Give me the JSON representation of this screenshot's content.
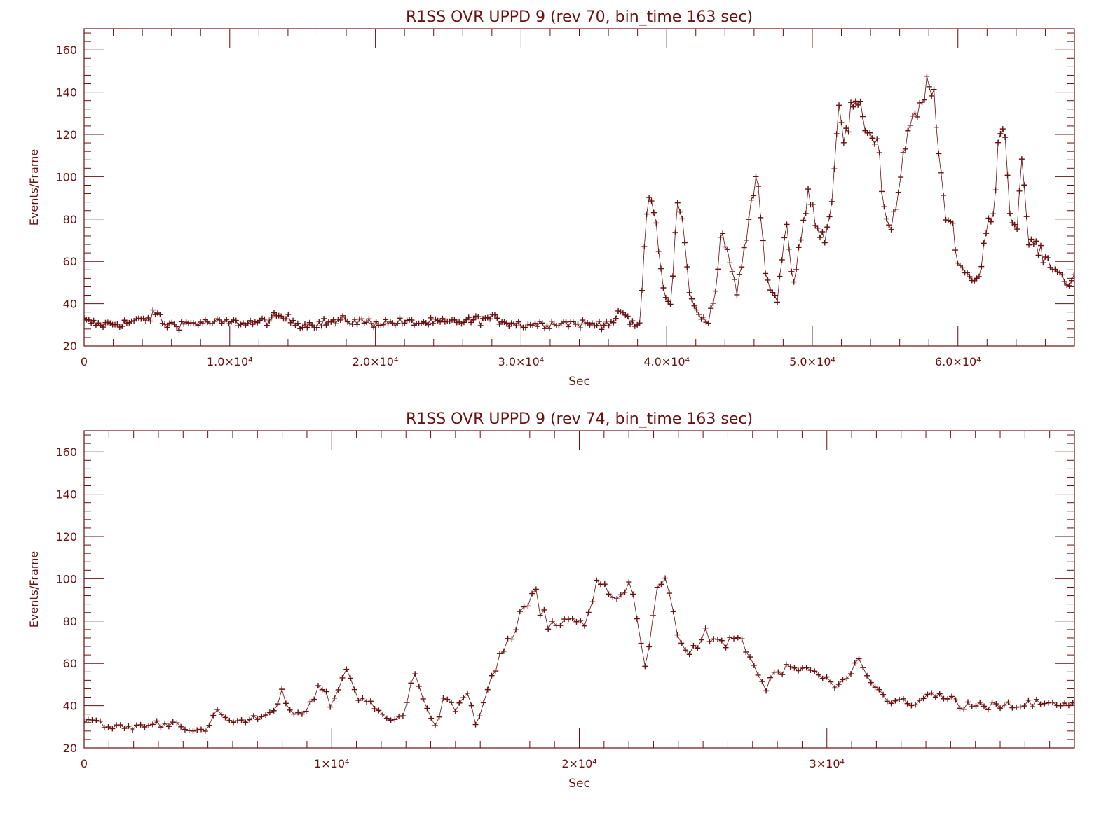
{
  "style": {
    "color": "#6b0f0f",
    "background": "#ffffff",
    "marker": "plus"
  },
  "chart_data": [
    {
      "type": "scatter",
      "title": "R1SS OVR UPPD 9 (rev 70, bin_time 163 sec)",
      "xlabel": "Sec",
      "ylabel": "Events/Frame",
      "xlim": [
        0,
        68000
      ],
      "ylim": [
        20,
        170
      ],
      "xticks": [
        0,
        10000,
        20000,
        30000,
        40000,
        50000,
        60000
      ],
      "xtick_labels": [
        "0",
        "1.0×10⁴",
        "2.0×10⁴",
        "3.0×10⁴",
        "4.0×10⁴",
        "5.0×10⁴",
        "6.0×10⁴"
      ],
      "yticks": [
        20,
        40,
        60,
        80,
        100,
        120,
        140,
        160
      ],
      "ytick_labels": [
        "20",
        "40",
        "60",
        "80",
        "100",
        "120",
        "140",
        "160"
      ],
      "bin_time": 163,
      "profile": [
        [
          0,
          32
        ],
        [
          1000,
          30
        ],
        [
          3000,
          31
        ],
        [
          4500,
          33
        ],
        [
          5000,
          36
        ],
        [
          5500,
          30
        ],
        [
          8000,
          31
        ],
        [
          10000,
          31
        ],
        [
          12000,
          31
        ],
        [
          13500,
          34
        ],
        [
          15000,
          30
        ],
        [
          18000,
          32
        ],
        [
          20000,
          31
        ],
        [
          25000,
          31
        ],
        [
          28000,
          33
        ],
        [
          30000,
          30
        ],
        [
          33000,
          31
        ],
        [
          35000,
          30
        ],
        [
          36500,
          32
        ],
        [
          37000,
          37
        ],
        [
          37500,
          30
        ],
        [
          38200,
          30
        ],
        [
          38400,
          60
        ],
        [
          38700,
          92
        ],
        [
          39200,
          82
        ],
        [
          39800,
          45
        ],
        [
          40300,
          38
        ],
        [
          40700,
          88
        ],
        [
          41200,
          75
        ],
        [
          41600,
          42
        ],
        [
          42200,
          35
        ],
        [
          42800,
          32
        ],
        [
          43300,
          42
        ],
        [
          43700,
          72
        ],
        [
          44300,
          62
        ],
        [
          44800,
          45
        ],
        [
          45500,
          72
        ],
        [
          46200,
          104
        ],
        [
          46700,
          60
        ],
        [
          47200,
          45
        ],
        [
          47600,
          42
        ],
        [
          48200,
          80
        ],
        [
          48700,
          48
        ],
        [
          49100,
          65
        ],
        [
          49700,
          92
        ],
        [
          50200,
          80
        ],
        [
          50800,
          70
        ],
        [
          51400,
          90
        ],
        [
          51800,
          140
        ],
        [
          52200,
          115
        ],
        [
          52800,
          135
        ],
        [
          53400,
          128
        ],
        [
          54000,
          120
        ],
        [
          54500,
          118
        ],
        [
          54900,
          85
        ],
        [
          55400,
          75
        ],
        [
          56000,
          95
        ],
        [
          56500,
          120
        ],
        [
          57100,
          128
        ],
        [
          57600,
          135
        ],
        [
          58000,
          148
        ],
        [
          58300,
          140
        ],
        [
          58700,
          110
        ],
        [
          59100,
          80
        ],
        [
          59600,
          78
        ],
        [
          60000,
          60
        ],
        [
          60500,
          55
        ],
        [
          61000,
          52
        ],
        [
          61400,
          50
        ],
        [
          61900,
          75
        ],
        [
          62400,
          80
        ],
        [
          62800,
          120
        ],
        [
          63200,
          125
        ],
        [
          63600,
          80
        ],
        [
          64000,
          75
        ],
        [
          64400,
          108
        ],
        [
          64800,
          70
        ],
        [
          65300,
          68
        ],
        [
          65800,
          62
        ],
        [
          66500,
          58
        ],
        [
          67200,
          52
        ],
        [
          67800,
          50
        ],
        [
          68300,
          63
        ],
        [
          68800,
          45
        ],
        [
          69500,
          45
        ]
      ]
    },
    {
      "type": "scatter",
      "title": "R1SS OVR UPPD 9 (rev 74, bin_time 163 sec)",
      "xlabel": "Sec",
      "ylabel": "Events/Frame",
      "xlim": [
        0,
        40000
      ],
      "ylim": [
        20,
        170
      ],
      "xticks": [
        0,
        10000,
        20000,
        30000
      ],
      "xtick_labels": [
        "0",
        "1×10⁴",
        "2×10⁴",
        "3×10⁴"
      ],
      "yticks": [
        20,
        40,
        60,
        80,
        100,
        120,
        140,
        160
      ],
      "ytick_labels": [
        "20",
        "40",
        "60",
        "80",
        "100",
        "120",
        "140",
        "160"
      ],
      "bin_time": 163,
      "profile": [
        [
          0,
          34
        ],
        [
          800,
          30
        ],
        [
          2000,
          30
        ],
        [
          3500,
          32
        ],
        [
          4500,
          29
        ],
        [
          5000,
          27
        ],
        [
          5400,
          40
        ],
        [
          5700,
          32
        ],
        [
          6500,
          33
        ],
        [
          7500,
          35
        ],
        [
          8000,
          45
        ],
        [
          8500,
          36
        ],
        [
          9000,
          38
        ],
        [
          9500,
          50
        ],
        [
          10000,
          40
        ],
        [
          10600,
          58
        ],
        [
          11000,
          45
        ],
        [
          11500,
          42
        ],
        [
          12000,
          35
        ],
        [
          12500,
          32
        ],
        [
          13000,
          38
        ],
        [
          13300,
          60
        ],
        [
          13700,
          44
        ],
        [
          14200,
          30
        ],
        [
          14600,
          45
        ],
        [
          15000,
          38
        ],
        [
          15500,
          45
        ],
        [
          15800,
          30
        ],
        [
          16200,
          45
        ],
        [
          16800,
          65
        ],
        [
          17300,
          72
        ],
        [
          17800,
          86
        ],
        [
          18200,
          92
        ],
        [
          18700,
          80
        ],
        [
          19200,
          78
        ],
        [
          19700,
          83
        ],
        [
          20200,
          78
        ],
        [
          20800,
          98
        ],
        [
          21300,
          92
        ],
        [
          21800,
          90
        ],
        [
          22100,
          100
        ],
        [
          22400,
          75
        ],
        [
          22700,
          55
        ],
        [
          23100,
          98
        ],
        [
          23500,
          98
        ],
        [
          24000,
          75
        ],
        [
          24500,
          62
        ],
        [
          25000,
          75
        ],
        [
          25500,
          68
        ],
        [
          26000,
          70
        ],
        [
          26500,
          73
        ],
        [
          27000,
          60
        ],
        [
          27500,
          48
        ],
        [
          28000,
          56
        ],
        [
          28600,
          57
        ],
        [
          29200,
          58
        ],
        [
          30000,
          52
        ],
        [
          30500,
          48
        ],
        [
          31200,
          60
        ],
        [
          31800,
          50
        ],
        [
          32500,
          42
        ],
        [
          33500,
          42
        ],
        [
          34500,
          45
        ],
        [
          35500,
          40
        ],
        [
          36500,
          39
        ],
        [
          37500,
          40
        ],
        [
          38500,
          41
        ],
        [
          39500,
          40
        ],
        [
          40000,
          40
        ]
      ]
    }
  ]
}
